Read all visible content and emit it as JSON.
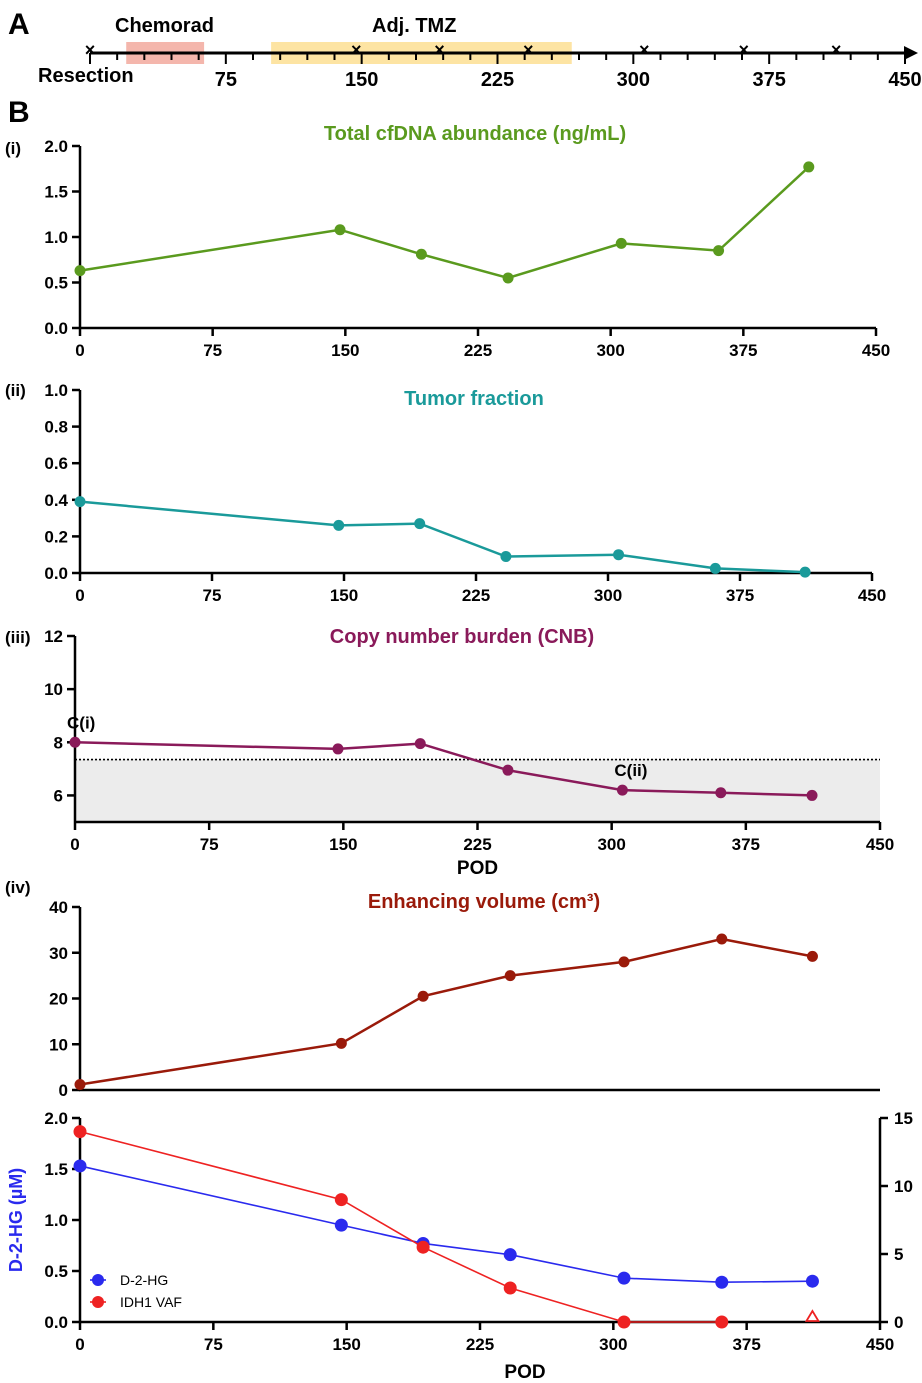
{
  "panel_labels": {
    "a": "A",
    "b": "B"
  },
  "timeline": {
    "labels": {
      "chemorad": "Chemorad",
      "adj_tmz": "Adj. TMZ",
      "resection": "Resection"
    },
    "colors": {
      "chemorad": "#f4b6ac",
      "adj_tmz": "#fde4a3"
    },
    "chemorad_range": [
      20,
      63
    ],
    "adj_tmz_range": [
      100,
      266
    ],
    "sample_days": [
      0,
      147,
      193,
      242,
      306,
      361,
      412
    ],
    "tick_labels": [
      "75",
      "150",
      "225",
      "300",
      "375",
      "450"
    ],
    "tick_values": [
      75,
      150,
      225,
      300,
      375,
      450
    ]
  },
  "chart_data": [
    {
      "id": "cfdna",
      "type": "line",
      "sublabel": "(i)",
      "title": "Total cfDNA abundance (ng/mL)",
      "color": "#5a9a1e",
      "x": [
        0,
        147,
        193,
        242,
        306,
        361,
        412
      ],
      "y": [
        0.63,
        1.08,
        0.81,
        0.55,
        0.93,
        0.85,
        1.77
      ],
      "xlim": [
        0,
        450
      ],
      "ylim": [
        0,
        2.0
      ],
      "xticks": [
        "0",
        "75",
        "150",
        "225",
        "300",
        "375",
        "450"
      ],
      "yticks": [
        "0.0",
        "0.5",
        "1.0",
        "1.5",
        "2.0"
      ]
    },
    {
      "id": "tumor",
      "type": "line",
      "sublabel": "(ii)",
      "title": "Tumor fraction",
      "color": "#1a9a9a",
      "x": [
        0,
        147,
        193,
        242,
        306,
        361,
        412
      ],
      "y": [
        0.39,
        0.26,
        0.27,
        0.09,
        0.1,
        0.025,
        0.005
      ],
      "xlim": [
        0,
        450
      ],
      "ylim": [
        0,
        1.0
      ],
      "xticks": [
        "0",
        "75",
        "150",
        "225",
        "300",
        "375",
        "450"
      ],
      "yticks": [
        "0.0",
        "0.2",
        "0.4",
        "0.6",
        "0.8",
        "1.0"
      ]
    },
    {
      "id": "cnb",
      "type": "line",
      "sublabel": "(iii)",
      "title": "Copy number burden (CNB)",
      "color": "#8a1a5a",
      "x": [
        0,
        147,
        193,
        242,
        306,
        361,
        412
      ],
      "y": [
        8.0,
        7.75,
        7.95,
        6.95,
        6.2,
        6.1,
        6.0
      ],
      "xlim": [
        0,
        450
      ],
      "ylim": [
        5,
        12
      ],
      "threshold": 7.35,
      "point_labels": [
        {
          "index": 0,
          "text": "C(i)"
        },
        {
          "index": 4,
          "text": "C(ii)"
        }
      ],
      "xlabel": "POD",
      "xticks": [
        "0",
        "75",
        "150",
        "225",
        "300",
        "375",
        "450"
      ],
      "yticks": [
        "6",
        "8",
        "10",
        "12"
      ],
      "ytick_values": [
        6,
        8,
        10,
        12
      ]
    },
    {
      "id": "volume",
      "type": "line",
      "sublabel": "(iv)",
      "title": "Enhancing volume (cm³)",
      "color": "#9a1a0a",
      "x": [
        0,
        147,
        193,
        242,
        306,
        361,
        412
      ],
      "y": [
        1.2,
        10.2,
        20.5,
        25.0,
        28.0,
        33.0,
        29.2
      ],
      "xlim": [
        0,
        450
      ],
      "ylim": [
        0,
        40
      ],
      "yticks": [
        "0",
        "10",
        "20",
        "30",
        "40"
      ]
    },
    {
      "id": "d2hg",
      "type": "line",
      "ylabel": "D-2-HG (µM)",
      "xlabel": "POD",
      "x": [
        0,
        147,
        193,
        242,
        306,
        361,
        412
      ],
      "series": [
        {
          "name": "D-2-HG",
          "color": "#2a2aee",
          "axis": "left",
          "y": [
            1.53,
            0.95,
            0.77,
            0.66,
            0.43,
            0.39,
            0.4
          ]
        },
        {
          "name": "IDH1 VAF",
          "color": "#ee2222",
          "axis": "right",
          "y": [
            14.0,
            9.0,
            5.5,
            2.5,
            0.0,
            0.0,
            0.0
          ],
          "open_last": true
        }
      ],
      "xlim": [
        0,
        450
      ],
      "ylim_left": [
        0,
        2.0
      ],
      "ylim_right": [
        0,
        15
      ],
      "xticks": [
        "0",
        "75",
        "150",
        "225",
        "300",
        "375",
        "450"
      ],
      "yticks_left": [
        "0.0",
        "0.5",
        "1.0",
        "1.5",
        "2.0"
      ],
      "yticks_right": [
        "0",
        "5",
        "10",
        "15"
      ],
      "legend_position": "bottom-left"
    }
  ]
}
